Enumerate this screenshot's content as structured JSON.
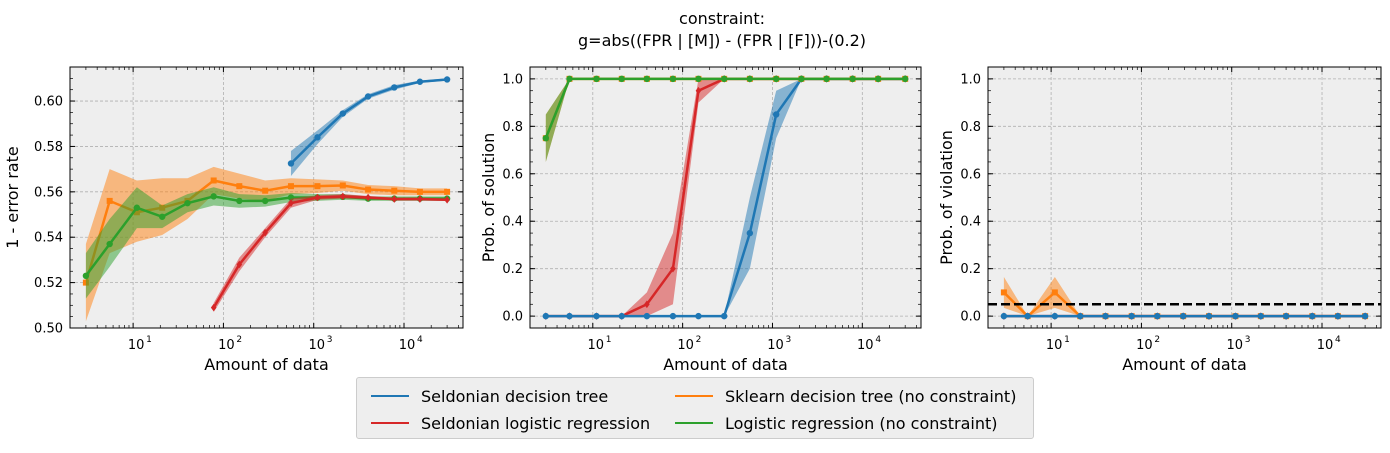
{
  "figure": {
    "title_line1": "constraint:",
    "title_line2": "g=abs((FPR | [M]) - (FPR | [F]))-(0.2)"
  },
  "colors": {
    "seldonian_dt": "#1f77b4",
    "seldonian_lr": "#d62728",
    "sklearn_dt": "#ff7f0e",
    "logistic": "#2ca02c",
    "threshold": "#000000",
    "panel_bg": "#eeeeee",
    "grid": "#b0b0b0"
  },
  "legend": {
    "items": [
      {
        "label": "Seldonian decision tree",
        "color": "#1f77b4"
      },
      {
        "label": "Seldonian logistic regression",
        "color": "#d62728"
      },
      {
        "label": "Sklearn decision tree (no constraint)",
        "color": "#ff7f0e"
      },
      {
        "label": "Logistic regression (no constraint)",
        "color": "#2ca02c"
      }
    ]
  },
  "chart_data": [
    {
      "type": "line",
      "xlabel": "Amount of data",
      "ylabel": "1 - error rate",
      "xscale": "log",
      "xlim": [
        2,
        45000
      ],
      "ylim": [
        0.5,
        0.615
      ],
      "yticks": [
        0.5,
        0.52,
        0.54,
        0.56,
        0.58,
        0.6
      ],
      "ytick_labels": [
        "0.50",
        "0.52",
        "0.54",
        "0.56",
        "0.58",
        "0.60"
      ],
      "xticks": [
        10,
        100,
        1000,
        10000
      ],
      "xtick_labels": [
        "10",
        "10",
        "10",
        "10"
      ],
      "xtick_exps": [
        "1",
        "2",
        "3",
        "4"
      ],
      "grid": true,
      "series": [
        {
          "key": "sklearn_dt",
          "color": "#ff7f0e",
          "marker": "square",
          "x": [
            3,
            5.5,
            11,
            21,
            40,
            78,
            150,
            290,
            560,
            1100,
            2100,
            4000,
            7800,
            15000,
            30000
          ],
          "y": [
            0.52,
            0.556,
            0.551,
            0.553,
            0.556,
            0.565,
            0.5625,
            0.5605,
            0.5625,
            0.5625,
            0.5628,
            0.561,
            0.5605,
            0.56,
            0.56
          ],
          "lo": [
            0.503,
            0.533,
            0.538,
            0.541,
            0.548,
            0.559,
            0.557,
            0.556,
            0.559,
            0.5595,
            0.5605,
            0.559,
            0.5585,
            0.5585,
            0.5585
          ],
          "hi": [
            0.537,
            0.57,
            0.565,
            0.566,
            0.566,
            0.571,
            0.568,
            0.565,
            0.566,
            0.5655,
            0.565,
            0.563,
            0.5625,
            0.5615,
            0.5615
          ]
        },
        {
          "key": "logistic",
          "color": "#2ca02c",
          "marker": "circle",
          "x": [
            3,
            5.5,
            11,
            21,
            40,
            78,
            150,
            290,
            560,
            1100,
            2100,
            4000,
            7800,
            15000,
            30000
          ],
          "y": [
            0.523,
            0.537,
            0.553,
            0.549,
            0.555,
            0.558,
            0.556,
            0.556,
            0.5575,
            0.5575,
            0.5578,
            0.557,
            0.557,
            0.557,
            0.557
          ],
          "lo": [
            0.513,
            0.527,
            0.544,
            0.544,
            0.551,
            0.554,
            0.553,
            0.5535,
            0.5555,
            0.556,
            0.5565,
            0.556,
            0.556,
            0.556,
            0.556
          ],
          "hi": [
            0.533,
            0.548,
            0.562,
            0.554,
            0.559,
            0.562,
            0.559,
            0.5585,
            0.5595,
            0.559,
            0.559,
            0.558,
            0.558,
            0.558,
            0.558
          ]
        },
        {
          "key": "seldonian_lr",
          "color": "#d62728",
          "marker": "diamond",
          "x": [
            78,
            150,
            290,
            560,
            1100,
            2100,
            4000,
            7800,
            15000,
            30000
          ],
          "y": [
            0.509,
            0.528,
            0.542,
            0.555,
            0.5575,
            0.558,
            0.5575,
            0.5568,
            0.5568,
            0.5565
          ],
          "lo": [
            0.507,
            0.525,
            0.54,
            0.553,
            0.5565,
            0.557,
            0.5568,
            0.5562,
            0.5562,
            0.556
          ],
          "hi": [
            0.511,
            0.531,
            0.544,
            0.557,
            0.5585,
            0.559,
            0.5582,
            0.5575,
            0.5575,
            0.557
          ]
        },
        {
          "key": "seldonian_dt",
          "color": "#1f77b4",
          "marker": "circle",
          "x": [
            560,
            1100,
            2100,
            4000,
            7800,
            15000,
            30000
          ],
          "y": [
            0.5725,
            0.584,
            0.5945,
            0.602,
            0.606,
            0.6085,
            0.6095
          ],
          "lo": [
            0.567,
            0.581,
            0.593,
            0.601,
            0.605,
            0.608,
            0.609
          ],
          "hi": [
            0.578,
            0.587,
            0.596,
            0.603,
            0.607,
            0.609,
            0.61
          ]
        }
      ]
    },
    {
      "type": "line",
      "xlabel": "Amount of data",
      "ylabel": "Prob. of solution",
      "xscale": "log",
      "xlim": [
        2,
        45000
      ],
      "ylim": [
        -0.05,
        1.05
      ],
      "yticks": [
        0.0,
        0.2,
        0.4,
        0.6,
        0.8,
        1.0
      ],
      "ytick_labels": [
        "0.0",
        "0.2",
        "0.4",
        "0.6",
        "0.8",
        "1.0"
      ],
      "xticks": [
        10,
        100,
        1000,
        10000
      ],
      "xtick_labels": [
        "10",
        "10",
        "10",
        "10"
      ],
      "xtick_exps": [
        "1",
        "2",
        "3",
        "4"
      ],
      "grid": true,
      "series": [
        {
          "key": "seldonian_lr",
          "color": "#d62728",
          "marker": "diamond",
          "x": [
            3,
            5.5,
            11,
            21,
            40,
            78,
            150,
            290,
            560,
            1100,
            2100,
            4000,
            7800,
            15000,
            30000
          ],
          "y": [
            0,
            0,
            0,
            0,
            0.05,
            0.2,
            0.95,
            1,
            1,
            1,
            1,
            1,
            1,
            1,
            1
          ],
          "lo": [
            0,
            0,
            0,
            0,
            0,
            0.05,
            0.9,
            1,
            1,
            1,
            1,
            1,
            1,
            1,
            1
          ],
          "hi": [
            0,
            0,
            0,
            0,
            0.1,
            0.35,
            1,
            1,
            1,
            1,
            1,
            1,
            1,
            1,
            1
          ]
        },
        {
          "key": "seldonian_dt",
          "color": "#1f77b4",
          "marker": "circle",
          "x": [
            3,
            5.5,
            11,
            21,
            40,
            78,
            150,
            290,
            560,
            1100,
            2100,
            4000,
            7800,
            15000,
            30000
          ],
          "y": [
            0,
            0,
            0,
            0,
            0,
            0,
            0,
            0,
            0.35,
            0.85,
            1,
            1,
            1,
            1,
            1
          ],
          "lo": [
            0,
            0,
            0,
            0,
            0,
            0,
            0,
            0,
            0.2,
            0.75,
            1,
            1,
            1,
            1,
            1
          ],
          "hi": [
            0,
            0,
            0,
            0,
            0,
            0,
            0,
            0,
            0.5,
            0.95,
            1,
            1,
            1,
            1,
            1
          ]
        },
        {
          "key": "sklearn_dt",
          "color": "#ff7f0e",
          "marker": "square",
          "x": [
            3,
            5.5,
            11,
            21,
            40,
            78,
            150,
            290,
            560,
            1100,
            2100,
            4000,
            7800,
            15000,
            30000
          ],
          "y": [
            0.75,
            1,
            1,
            1,
            1,
            1,
            1,
            1,
            1,
            1,
            1,
            1,
            1,
            1,
            1
          ],
          "lo": [
            0.65,
            1,
            1,
            1,
            1,
            1,
            1,
            1,
            1,
            1,
            1,
            1,
            1,
            1,
            1
          ],
          "hi": [
            0.85,
            1,
            1,
            1,
            1,
            1,
            1,
            1,
            1,
            1,
            1,
            1,
            1,
            1,
            1
          ]
        },
        {
          "key": "logistic",
          "color": "#2ca02c",
          "marker": "circle",
          "x": [
            3,
            5.5,
            11,
            21,
            40,
            78,
            150,
            290,
            560,
            1100,
            2100,
            4000,
            7800,
            15000,
            30000
          ],
          "y": [
            0.75,
            1,
            1,
            1,
            1,
            1,
            1,
            1,
            1,
            1,
            1,
            1,
            1,
            1,
            1
          ],
          "lo": [
            0.65,
            1,
            1,
            1,
            1,
            1,
            1,
            1,
            1,
            1,
            1,
            1,
            1,
            1,
            1
          ],
          "hi": [
            0.85,
            1,
            1,
            1,
            1,
            1,
            1,
            1,
            1,
            1,
            1,
            1,
            1,
            1,
            1
          ]
        }
      ]
    },
    {
      "type": "line",
      "xlabel": "Amount of data",
      "ylabel": "Prob. of violation",
      "xscale": "log",
      "xlim": [
        2,
        45000
      ],
      "ylim": [
        -0.05,
        1.05
      ],
      "yticks": [
        0.0,
        0.2,
        0.4,
        0.6,
        0.8,
        1.0
      ],
      "ytick_labels": [
        "0.0",
        "0.2",
        "0.4",
        "0.6",
        "0.8",
        "1.0"
      ],
      "xticks": [
        10,
        100,
        1000,
        10000
      ],
      "xtick_labels": [
        "10",
        "10",
        "10",
        "10"
      ],
      "xtick_exps": [
        "1",
        "2",
        "3",
        "4"
      ],
      "grid": true,
      "threshold": 0.05,
      "series": [
        {
          "key": "sklearn_dt",
          "color": "#ff7f0e",
          "marker": "square",
          "x": [
            3,
            5.5,
            11,
            21,
            40,
            78,
            150,
            290,
            560,
            1100,
            2100,
            4000,
            7800,
            15000,
            30000
          ],
          "y": [
            0.1,
            0,
            0.1,
            0,
            0,
            0,
            0,
            0,
            0,
            0,
            0,
            0,
            0,
            0,
            0
          ],
          "lo": [
            0.035,
            0,
            0.035,
            0,
            0,
            0,
            0,
            0,
            0,
            0,
            0,
            0,
            0,
            0,
            0
          ],
          "hi": [
            0.165,
            0,
            0.165,
            0,
            0,
            0,
            0,
            0,
            0,
            0,
            0,
            0,
            0,
            0,
            0
          ]
        },
        {
          "key": "seldonian_lr",
          "color": "#d62728",
          "marker": "diamond",
          "x": [
            3,
            5.5,
            11,
            21,
            40,
            78,
            150,
            290,
            560,
            1100,
            2100,
            4000,
            7800,
            15000,
            30000
          ],
          "y": [
            0,
            0,
            0,
            0,
            0,
            0,
            0,
            0,
            0,
            0,
            0,
            0,
            0,
            0,
            0
          ],
          "lo": [
            0,
            0,
            0,
            0,
            0,
            0,
            0,
            0,
            0,
            0,
            0,
            0,
            0,
            0,
            0
          ],
          "hi": [
            0,
            0,
            0,
            0,
            0,
            0,
            0,
            0,
            0,
            0,
            0,
            0,
            0,
            0,
            0
          ]
        },
        {
          "key": "seldonian_dt",
          "color": "#1f77b4",
          "marker": "circle",
          "x": [
            3,
            5.5,
            11,
            21,
            40,
            78,
            150,
            290,
            560,
            1100,
            2100,
            4000,
            7800,
            15000,
            30000
          ],
          "y": [
            0,
            0,
            0,
            0,
            0,
            0,
            0,
            0,
            0,
            0,
            0,
            0,
            0,
            0,
            0
          ],
          "lo": [
            0,
            0,
            0,
            0,
            0,
            0,
            0,
            0,
            0,
            0,
            0,
            0,
            0,
            0,
            0
          ],
          "hi": [
            0,
            0,
            0,
            0,
            0,
            0,
            0,
            0,
            0,
            0,
            0,
            0,
            0,
            0,
            0
          ]
        }
      ]
    }
  ]
}
